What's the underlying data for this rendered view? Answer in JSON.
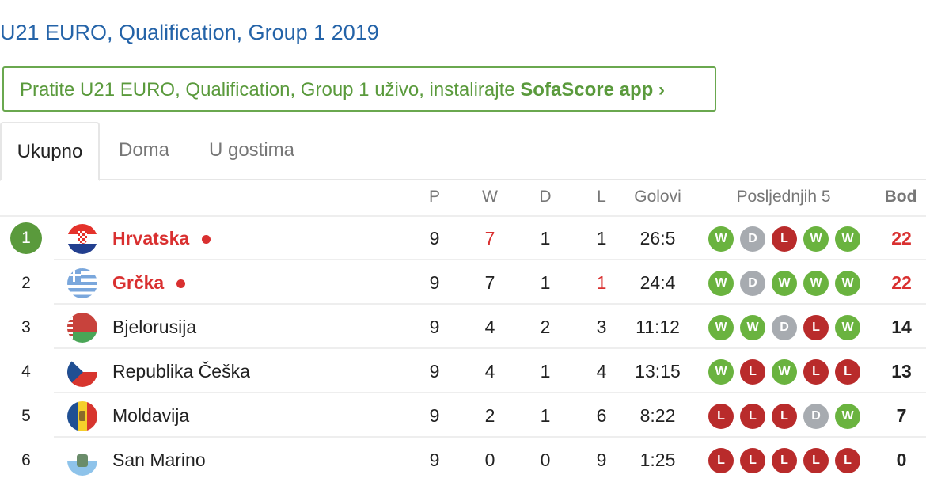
{
  "title": "U21 EURO, Qualification, Group 1 2019",
  "promo": {
    "text": "Pratite U21 EURO, Qualification, Group 1 uživo, instalirajte ",
    "link": "SofaScore app ›"
  },
  "tabs": [
    "Ukupno",
    "Doma",
    "U gostima"
  ],
  "headers": {
    "p": "P",
    "w": "W",
    "d": "D",
    "l": "L",
    "goals": "Golovi",
    "form": "Posljednjih 5",
    "pts": "Bod"
  },
  "colors": {
    "win": "#6ab33f",
    "draw": "#a7abb0",
    "loss": "#b92b2b",
    "highlight": "#d93030",
    "link": "#2463a8"
  },
  "rows": [
    {
      "rank": "1",
      "team": "Hrvatska",
      "flag": "croatia",
      "p": "9",
      "w": "7",
      "d": "1",
      "l": "1",
      "goals": "26:5",
      "form": [
        "W",
        "D",
        "L",
        "W",
        "W"
      ],
      "pts": "22",
      "live": true,
      "red": [
        "w",
        "pts"
      ]
    },
    {
      "rank": "2",
      "team": "Grčka",
      "flag": "greece",
      "p": "9",
      "w": "7",
      "d": "1",
      "l": "1",
      "goals": "24:4",
      "form": [
        "W",
        "D",
        "W",
        "W",
        "W"
      ],
      "pts": "22",
      "live": true,
      "red": [
        "l",
        "pts"
      ]
    },
    {
      "rank": "3",
      "team": "Bjelorusija",
      "flag": "belarus",
      "p": "9",
      "w": "4",
      "d": "2",
      "l": "3",
      "goals": "11:12",
      "form": [
        "W",
        "W",
        "D",
        "L",
        "W"
      ],
      "pts": "14",
      "live": false,
      "red": []
    },
    {
      "rank": "4",
      "team": "Republika Češka",
      "flag": "czech",
      "p": "9",
      "w": "4",
      "d": "1",
      "l": "4",
      "goals": "13:15",
      "form": [
        "W",
        "L",
        "W",
        "L",
        "L"
      ],
      "pts": "13",
      "live": false,
      "red": []
    },
    {
      "rank": "5",
      "team": "Moldavija",
      "flag": "moldova",
      "p": "9",
      "w": "2",
      "d": "1",
      "l": "6",
      "goals": "8:22",
      "form": [
        "L",
        "L",
        "L",
        "D",
        "W"
      ],
      "pts": "7",
      "live": false,
      "red": []
    },
    {
      "rank": "6",
      "team": "San Marino",
      "flag": "san-marino",
      "p": "9",
      "w": "0",
      "d": "0",
      "l": "9",
      "goals": "1:25",
      "form": [
        "L",
        "L",
        "L",
        "L",
        "L"
      ],
      "pts": "0",
      "live": false,
      "red": []
    }
  ]
}
